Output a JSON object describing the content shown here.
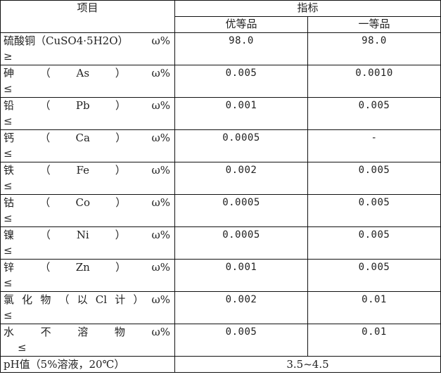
{
  "header": {
    "item": "项目",
    "indicator": "指标",
    "grade_superior": "优等品",
    "grade_first": "一等品"
  },
  "rows": [
    {
      "tokens": [
        "硫酸铜（CuSO4·5H2O）",
        "ω%"
      ],
      "cmp": "≥",
      "superior": "98.0",
      "first": "98.0"
    },
    {
      "tokens": [
        "砷",
        "（",
        "As",
        "）",
        "ω%"
      ],
      "cmp": "≤",
      "superior": "0.005",
      "first": "0.0010"
    },
    {
      "tokens": [
        "铅",
        "（",
        "Pb",
        "）",
        "ω%"
      ],
      "cmp": "≤",
      "superior": "0.001",
      "first": "0.005"
    },
    {
      "tokens": [
        "钙",
        "（",
        "Ca",
        "）",
        "ω%"
      ],
      "cmp": "≤",
      "superior": "0.0005",
      "first": "-"
    },
    {
      "tokens": [
        "铁",
        "（",
        "Fe",
        "）",
        "ω%"
      ],
      "cmp": "≤",
      "superior": "0.002",
      "first": "0.005"
    },
    {
      "tokens": [
        "钴",
        "（",
        "Co",
        "）",
        "ω%"
      ],
      "cmp": "≤",
      "superior": "0.0005",
      "first": "0.005"
    },
    {
      "tokens": [
        "镍",
        "（",
        "Ni",
        "）",
        "ω%"
      ],
      "cmp": "≤",
      "superior": "0.0005",
      "first": "0.005"
    },
    {
      "tokens": [
        "锌",
        "（",
        "Zn",
        "）",
        "ω%"
      ],
      "cmp": "≤",
      "superior": "0.001",
      "first": "0.005"
    },
    {
      "tokens": [
        "氯",
        "化",
        "物",
        "（",
        "以",
        "Cl",
        "计",
        "）",
        "ω%"
      ],
      "cmp": "≤",
      "superior": "0.002",
      "first": "0.01"
    },
    {
      "tokens": [
        "水",
        "不",
        "溶",
        "物",
        "ω%"
      ],
      "cmp": "≤",
      "superior": "0.005",
      "first": "0.01",
      "indent": true
    }
  ],
  "ph": {
    "label": "pH值（5%溶液，20℃）",
    "value": "3.5~4.5"
  }
}
